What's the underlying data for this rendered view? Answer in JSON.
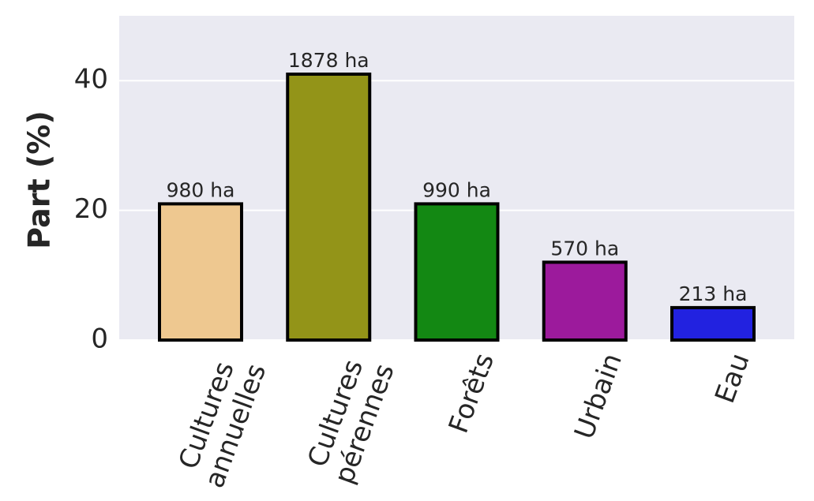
{
  "chart_data": {
    "type": "bar",
    "ylabel": "Part (%)",
    "categories": [
      "Cultures\nannuelles",
      "Cultures\npérennes",
      "Forêts",
      "Urbain",
      "Eau"
    ],
    "values": [
      21,
      41,
      21,
      12,
      5
    ],
    "annotations": [
      "980 ha",
      "1878 ha",
      "990 ha",
      "570 ha",
      "213 ha"
    ],
    "colors": [
      "#eec890",
      "#939418",
      "#138813",
      "#9c1a9c",
      "#2222e0"
    ],
    "ylim": [
      0,
      50
    ],
    "yticks": [
      0,
      20,
      40
    ],
    "grid": true
  }
}
